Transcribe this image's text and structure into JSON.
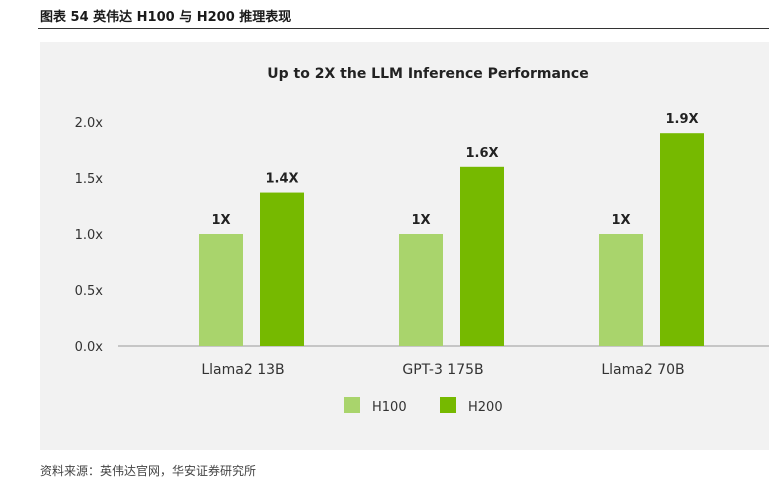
{
  "caption": "图表 54 英伟达 H100 与 H200 推理表现",
  "source": "资料来源：英伟达官网，华安证券研究所",
  "chart_data": {
    "type": "bar",
    "title": "Up to 2X the LLM Inference Performance",
    "categories": [
      "Llama2 13B",
      "GPT-3 175B",
      "Llama2 70B"
    ],
    "y_ticks": [
      "0.0x",
      "0.5x",
      "1.0x",
      "1.5x",
      "2.0x"
    ],
    "ylim": [
      0,
      2.0
    ],
    "series": [
      {
        "name": "H100",
        "color": "#a9d46c",
        "values": [
          1.0,
          1.0,
          1.0
        ],
        "labels": [
          "1X",
          "1X",
          "1X"
        ]
      },
      {
        "name": "H200",
        "color": "#76b900",
        "values": [
          1.37,
          1.6,
          1.9
        ],
        "labels": [
          "1.4X",
          "1.6X",
          "1.9X"
        ]
      }
    ],
    "legend": "bottom-center",
    "grid": false
  }
}
